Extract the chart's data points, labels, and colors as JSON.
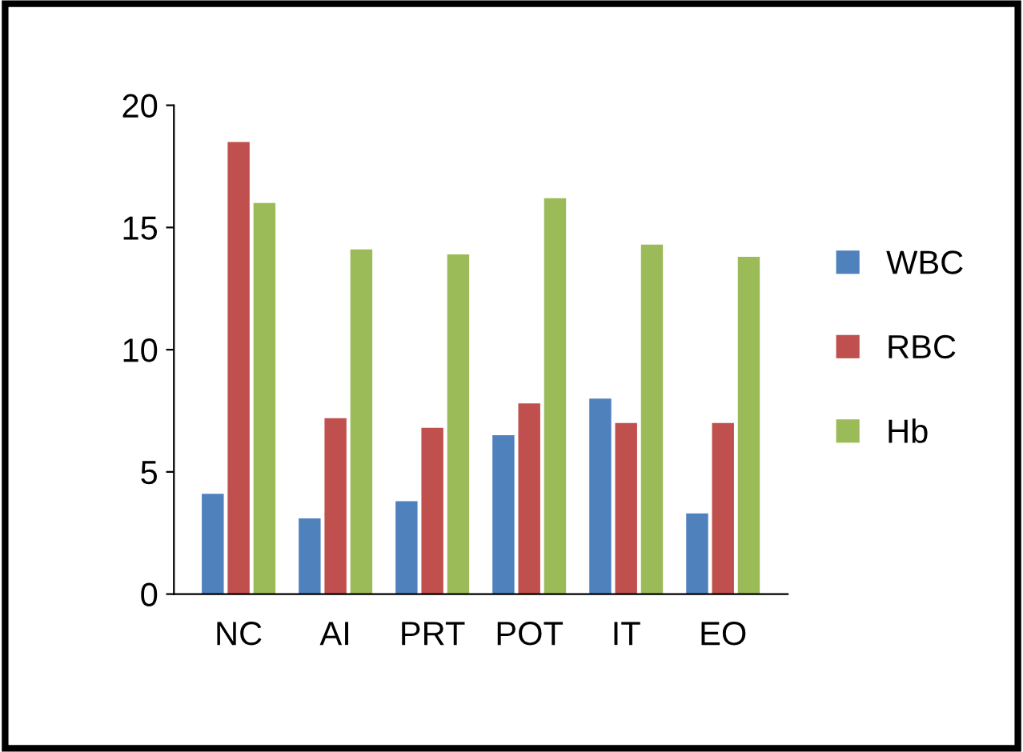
{
  "chart_data": {
    "type": "bar",
    "categories": [
      "NC",
      "AI",
      "PRT",
      "POT",
      "IT",
      "EO"
    ],
    "series": [
      {
        "name": "WBC",
        "color": "#4f81bd",
        "values": [
          4.1,
          3.1,
          3.8,
          6.5,
          8.0,
          3.3
        ]
      },
      {
        "name": "RBC",
        "color": "#c0504d",
        "values": [
          18.5,
          7.2,
          6.8,
          7.8,
          7.0,
          7.0
        ]
      },
      {
        "name": "Hb",
        "color": "#9bbb59",
        "values": [
          16.0,
          14.1,
          13.9,
          16.2,
          14.3,
          13.8
        ]
      }
    ],
    "ylim": [
      0,
      20
    ],
    "yticks": [
      0,
      5,
      10,
      15,
      20
    ],
    "grid": false,
    "legend": "right"
  }
}
